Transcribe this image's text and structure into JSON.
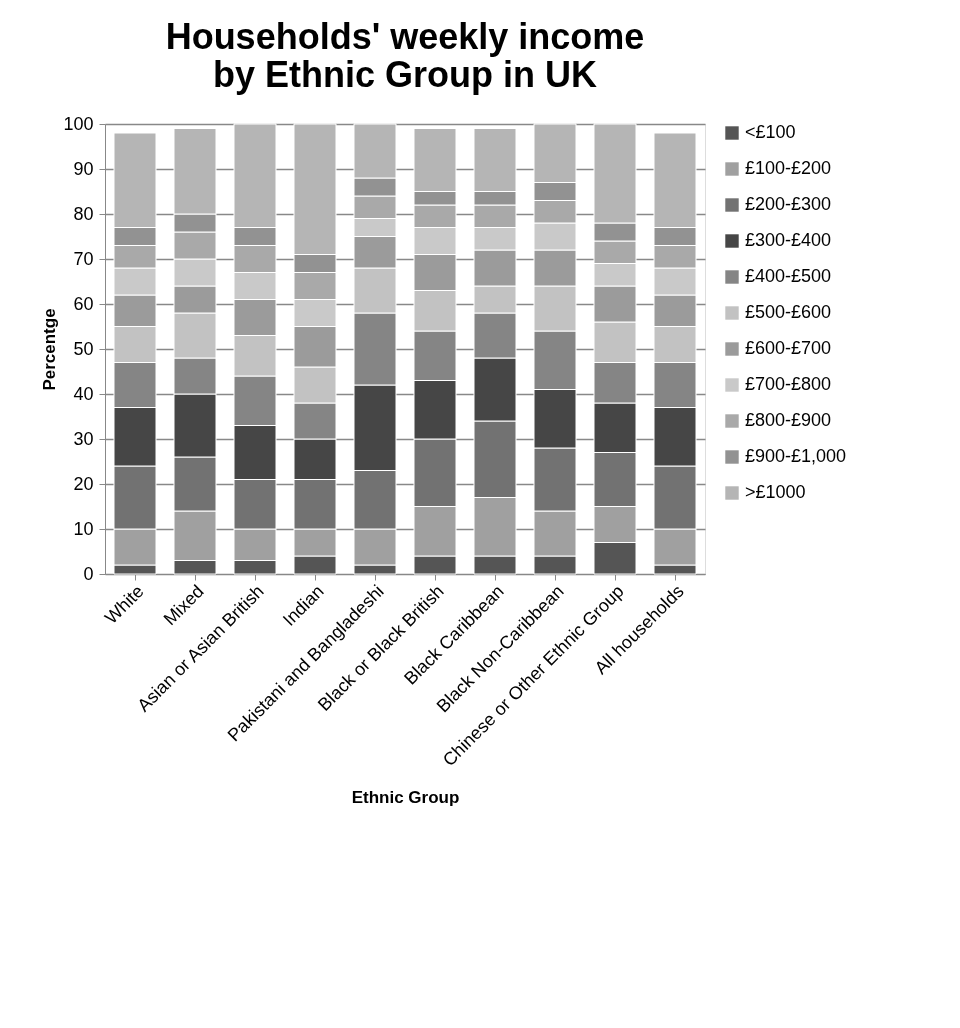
{
  "chart_data": {
    "type": "bar",
    "stacked": true,
    "title": "Households' weekly income by Ethnic Group in UK",
    "xlabel": "Ethnic Group",
    "ylabel": "Percentge",
    "categories": [
      "White",
      "Mixed",
      "Asian or Asian British",
      "Indian",
      "Pakistani and Bangladeshi",
      "Black or Black British",
      "Black Caribbean",
      "Black Non-Caribbean",
      "Chinese or Other Ethnic Group",
      "All households"
    ],
    "ylim": [
      0,
      100
    ],
    "yticks": [
      0,
      10,
      20,
      30,
      40,
      50,
      60,
      70,
      80,
      90,
      100
    ],
    "grid": "y",
    "legend": "right",
    "series": [
      {
        "name": "<£100",
        "color": "#555555",
        "values": [
          2,
          3,
          3,
          4,
          2,
          4,
          4,
          4,
          7,
          2
        ]
      },
      {
        "name": "£100-£200",
        "color": "#a0a0a0",
        "values": [
          8,
          11,
          7,
          6,
          8,
          11,
          13,
          10,
          8,
          8
        ]
      },
      {
        "name": "£200-£300",
        "color": "#727272",
        "values": [
          14,
          12,
          11,
          11,
          13,
          15,
          17,
          14,
          12,
          14
        ]
      },
      {
        "name": "£300-£400",
        "color": "#464646",
        "values": [
          13,
          14,
          12,
          9,
          19,
          13,
          14,
          13,
          11,
          13
        ]
      },
      {
        "name": "£400-£500",
        "color": "#858585",
        "values": [
          10,
          8,
          11,
          8,
          16,
          11,
          10,
          13,
          9,
          10
        ]
      },
      {
        "name": "£500-£600",
        "color": "#c2c2c2",
        "values": [
          8,
          10,
          9,
          8,
          10,
          9,
          6,
          10,
          9,
          8
        ]
      },
      {
        "name": "£600-£700",
        "color": "#9b9b9b",
        "values": [
          7,
          6,
          8,
          9,
          7,
          8,
          8,
          8,
          8,
          7
        ]
      },
      {
        "name": "£700-£800",
        "color": "#c9c9c9",
        "values": [
          6,
          6,
          6,
          6,
          4,
          6,
          5,
          6,
          5,
          6
        ]
      },
      {
        "name": "£800-£900",
        "color": "#a9a9a9",
        "values": [
          5,
          6,
          6,
          6,
          5,
          5,
          5,
          5,
          5,
          5
        ]
      },
      {
        "name": "£900-£1,000",
        "color": "#929292",
        "values": [
          4,
          4,
          4,
          4,
          4,
          3,
          3,
          4,
          4,
          4
        ]
      },
      {
        "name": ">£1000",
        "color": "#b5b5b5",
        "values": [
          21,
          19,
          23,
          29,
          12,
          14,
          14,
          13,
          22,
          21
        ]
      }
    ]
  }
}
